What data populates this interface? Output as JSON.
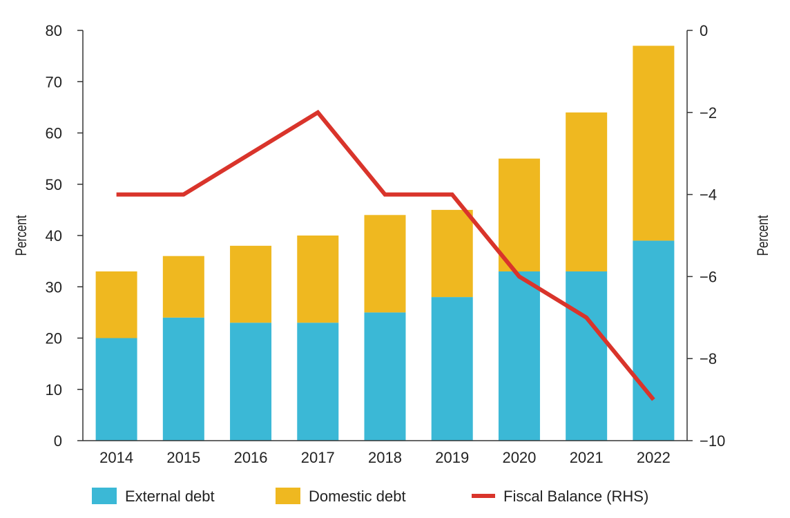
{
  "chart_data": {
    "type": "bar",
    "categories": [
      "2014",
      "2015",
      "2016",
      "2017",
      "2018",
      "2019",
      "2020",
      "2021",
      "2022"
    ],
    "stacked": true,
    "series": [
      {
        "name": "External debt",
        "type": "bar",
        "axis": "left",
        "color": "#3bb8d6",
        "values": [
          20,
          24,
          23,
          23,
          25,
          28,
          33,
          33,
          39
        ]
      },
      {
        "name": "Domestic debt",
        "type": "bar",
        "axis": "left",
        "color": "#efb820",
        "values": [
          13,
          12,
          15,
          17,
          19,
          17,
          22,
          31,
          38
        ]
      },
      {
        "name": "Fiscal Balance (RHS)",
        "type": "line",
        "axis": "right",
        "color": "#d9342b",
        "values": [
          -4,
          -4,
          -3,
          -2,
          -4,
          -4,
          -6,
          -7,
          -9
        ]
      }
    ],
    "ylabel": "Percent",
    "y2label": "Percent",
    "ylim": [
      0,
      80
    ],
    "y2lim": [
      -10,
      0
    ],
    "yticks": [
      "0",
      "10",
      "20",
      "30",
      "40",
      "50",
      "60",
      "70",
      "80"
    ],
    "y2ticks": [
      "0",
      "−2",
      "−4",
      "−6",
      "−8",
      "−10"
    ],
    "grid": false,
    "legend_position": "bottom"
  }
}
